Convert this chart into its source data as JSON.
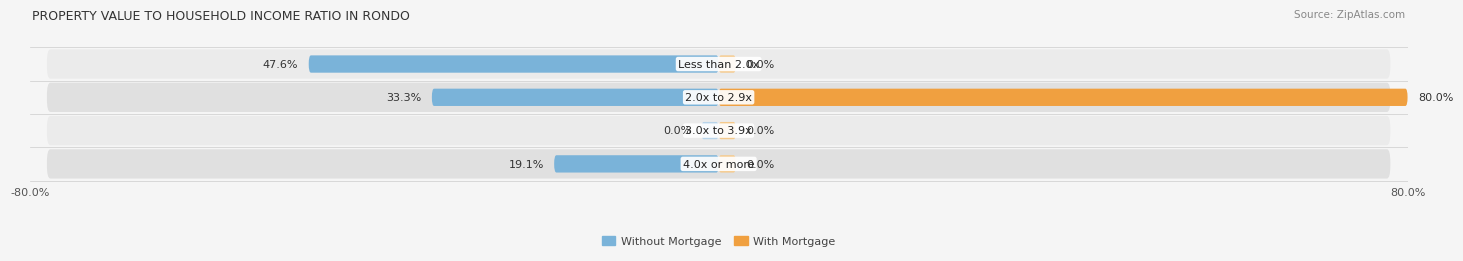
{
  "title": "PROPERTY VALUE TO HOUSEHOLD INCOME RATIO IN RONDO",
  "source": "Source: ZipAtlas.com",
  "categories": [
    "Less than 2.0x",
    "2.0x to 2.9x",
    "3.0x to 3.9x",
    "4.0x or more"
  ],
  "without_mortgage": [
    47.6,
    33.3,
    0.0,
    19.1
  ],
  "with_mortgage": [
    0.0,
    80.0,
    0.0,
    0.0
  ],
  "color_blue": "#7ab3d9",
  "color_blue_light": "#b8d4ea",
  "color_orange": "#f0a040",
  "color_orange_light": "#f5c98a",
  "color_row_odd": "#e8e8e8",
  "color_row_even": "#f0f0f0",
  "color_bg_fig": "#f5f5f5",
  "xlim_left": -80.0,
  "xlim_right": 80.0,
  "title_fontsize": 9,
  "label_fontsize": 8,
  "source_fontsize": 7.5,
  "legend_fontsize": 8,
  "tick_fontsize": 8,
  "value_fontsize": 8
}
